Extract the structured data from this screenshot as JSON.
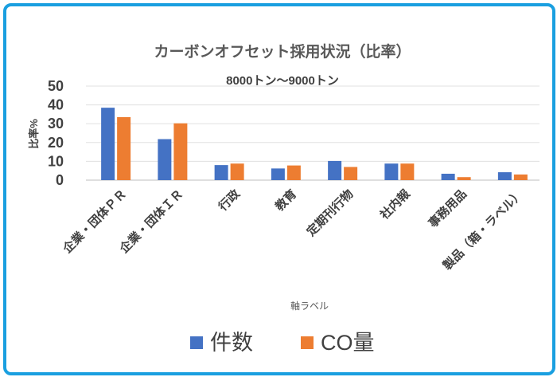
{
  "chart_data": {
    "type": "bar",
    "title": "カーボンオフセット採用状況（比率）",
    "subtitle": "8000トン～9000トン",
    "xlabel": "軸ラベル",
    "ylabel": "比率%",
    "ylim": [
      0,
      50
    ],
    "yticks": [
      0,
      10,
      20,
      30,
      40,
      50
    ],
    "grid": true,
    "legend_position": "bottom",
    "categories": [
      "企業・団体ＰＲ",
      "企業・団体ＩＲ",
      "行政",
      "教育",
      "定期刊行物",
      "社内報",
      "事務用品",
      "製品（箱・ラベル）"
    ],
    "series": [
      {
        "name": "件数",
        "color": "#4472c4",
        "values": [
          38.5,
          21.8,
          8,
          6.2,
          10.2,
          8.8,
          3.4,
          4.2
        ]
      },
      {
        "name": "CO量",
        "color": "#ed7d31",
        "values": [
          33.5,
          30.2,
          8.8,
          7.8,
          7,
          8.8,
          1.6,
          3
        ]
      }
    ]
  }
}
